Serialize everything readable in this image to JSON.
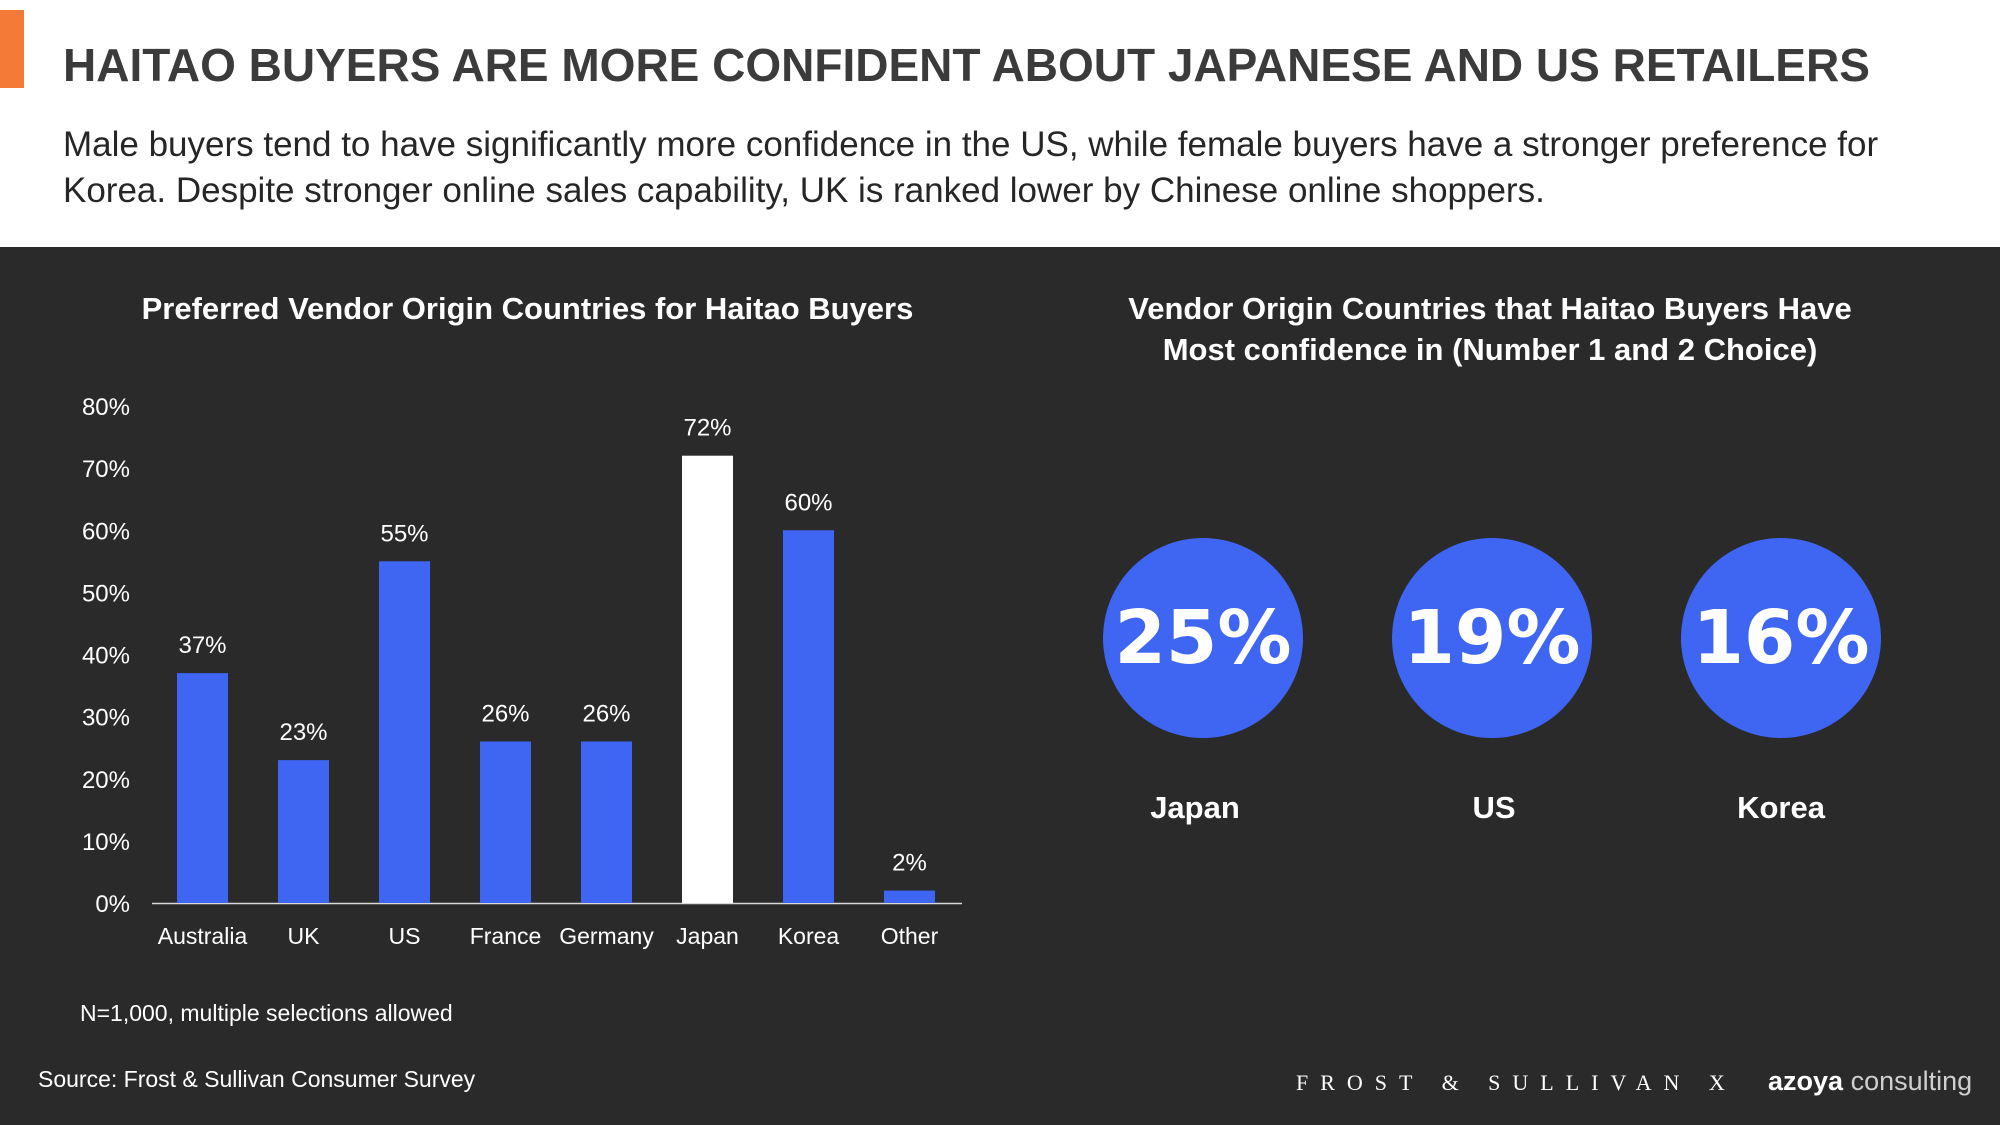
{
  "header": {
    "title": "HAITAO BUYERS ARE MORE CONFIDENT ABOUT JAPANESE AND US RETAILERS",
    "subtitle": "Male buyers tend to have significantly more confidence in the US, while female buyers have a stronger preference for Korea. Despite stronger online sales capability, UK is ranked lower by Chinese online shoppers."
  },
  "chart_data": [
    {
      "type": "bar",
      "title": "Preferred Vendor Origin Countries for Haitao Buyers",
      "categories": [
        "Australia",
        "UK",
        "US",
        "France",
        "Germany",
        "Japan",
        "Korea",
        "Other"
      ],
      "values": [
        37,
        23,
        55,
        26,
        26,
        72,
        60,
        2
      ],
      "data_labels": [
        "37%",
        "23%",
        "55%",
        "26%",
        "26%",
        "72%",
        "60%",
        "2%"
      ],
      "ylim": [
        0,
        80
      ],
      "yticks": [
        "0%",
        "10%",
        "20%",
        "30%",
        "40%",
        "50%",
        "60%",
        "70%",
        "80%"
      ],
      "highlight_category": "Japan",
      "colors": {
        "bar": "#3f66f3",
        "highlight": "#ffffff",
        "text": "#ffffff"
      },
      "grid": false
    },
    {
      "type": "table",
      "title": "Vendor Origin Countries that Haitao Buyers Have Most confidence in (Number 1 and 2 Choice)",
      "rows": [
        {
          "country": "Japan",
          "value": "25%"
        },
        {
          "country": "US",
          "value": "19%"
        },
        {
          "country": "Korea",
          "value": "16%"
        }
      ],
      "colors": {
        "circle": "#3f66f3"
      }
    }
  ],
  "footer": {
    "note": "N=1,000, multiple selections allowed",
    "source": "Source: Frost & Sullivan Consumer Survey",
    "logo_frost": "FROST & SULLIVAN X",
    "logo_azoya_bold": "azoya",
    "logo_azoya_light": "consulting"
  },
  "colors": {
    "accent": "#f47a38",
    "background_dark": "#2a2a2b",
    "bar_blue": "#3f66f3"
  }
}
